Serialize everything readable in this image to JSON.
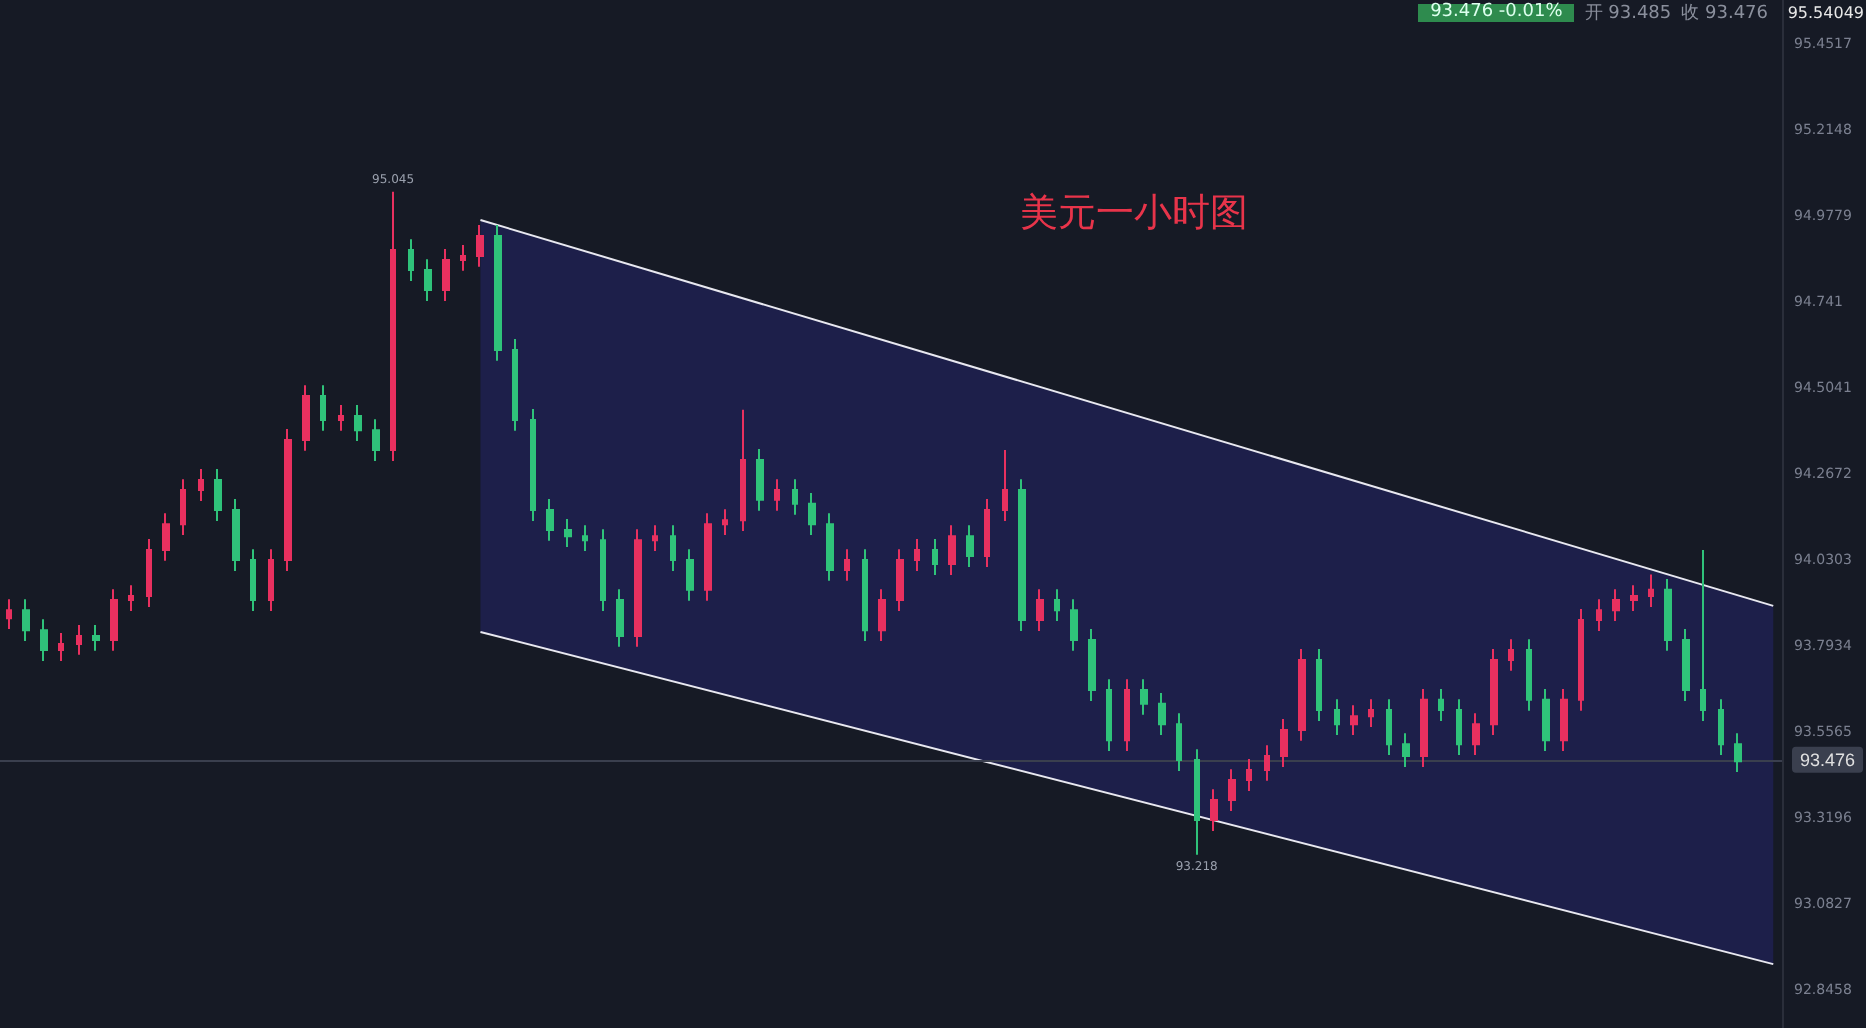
{
  "chart_data": {
    "type": "candlestick",
    "title": "美元一小时图",
    "categories": [
      null,
      null,
      null,
      null,
      null,
      null,
      null,
      null,
      null,
      null,
      null,
      null,
      null,
      null,
      null,
      null,
      null,
      null,
      null,
      null,
      null,
      null,
      null,
      null,
      null,
      null,
      null,
      null,
      null,
      null,
      null,
      null,
      null,
      null,
      null,
      null,
      null,
      null,
      null,
      null,
      null,
      null,
      null,
      null,
      null,
      null,
      null,
      null,
      null,
      null,
      null,
      null,
      null,
      null,
      null,
      null,
      null,
      null,
      null,
      null,
      null,
      null,
      null,
      null,
      null,
      null,
      null,
      null,
      null,
      null,
      null,
      null,
      null,
      null,
      null,
      null,
      null,
      null,
      null,
      null,
      null,
      null,
      null,
      null,
      null,
      null,
      null,
      null,
      null,
      null,
      null,
      null,
      null,
      null,
      null,
      null,
      null,
      null,
      null,
      null,
      null,
      null
    ],
    "ohlc": [
      [
        93.87,
        93.922,
        93.84,
        93.892
      ],
      [
        93.892,
        93.922,
        93.807,
        93.837
      ],
      [
        93.837,
        93.867,
        93.752,
        93.782
      ],
      [
        93.782,
        93.829,
        93.752,
        93.799
      ],
      [
        93.799,
        93.851,
        93.769,
        93.821
      ],
      [
        93.821,
        93.851,
        93.78,
        93.81
      ],
      [
        93.81,
        93.95,
        93.78,
        93.92
      ],
      [
        93.92,
        93.961,
        93.89,
        93.931
      ],
      [
        93.931,
        94.088,
        93.901,
        94.058
      ],
      [
        94.058,
        94.159,
        94.028,
        94.129
      ],
      [
        94.129,
        94.253,
        94.099,
        94.223
      ],
      [
        94.223,
        94.281,
        94.193,
        94.251
      ],
      [
        94.251,
        94.281,
        94.138,
        94.168
      ],
      [
        94.168,
        94.198,
        94.0,
        94.03
      ],
      [
        94.03,
        94.06,
        93.89,
        93.92
      ],
      [
        93.92,
        94.06,
        93.89,
        94.03
      ],
      [
        94.03,
        94.391,
        94.0,
        94.361
      ],
      [
        94.361,
        94.512,
        94.331,
        94.482
      ],
      [
        94.482,
        94.512,
        94.386,
        94.416
      ],
      [
        94.416,
        94.457,
        94.386,
        94.427
      ],
      [
        94.427,
        94.457,
        94.358,
        94.388
      ],
      [
        94.388,
        94.418,
        94.303,
        94.333
      ],
      [
        94.333,
        95.045,
        94.303,
        94.884
      ],
      [
        94.884,
        94.914,
        94.799,
        94.829
      ],
      [
        94.829,
        94.859,
        94.744,
        94.774
      ],
      [
        94.774,
        94.887,
        94.744,
        94.857
      ],
      [
        94.857,
        94.898,
        94.827,
        94.868
      ],
      [
        94.868,
        94.953,
        94.838,
        94.923
      ],
      [
        94.923,
        94.953,
        94.579,
        94.609
      ],
      [
        94.609,
        94.639,
        94.386,
        94.416
      ],
      [
        94.416,
        94.446,
        94.138,
        94.168
      ],
      [
        94.168,
        94.198,
        94.083,
        94.113
      ],
      [
        94.113,
        94.143,
        94.066,
        94.096
      ],
      [
        94.096,
        94.126,
        94.055,
        94.085
      ],
      [
        94.085,
        94.115,
        93.89,
        93.92
      ],
      [
        93.92,
        93.95,
        93.791,
        93.821
      ],
      [
        93.821,
        94.115,
        93.791,
        94.085
      ],
      [
        94.085,
        94.126,
        94.055,
        94.096
      ],
      [
        94.096,
        94.126,
        94.0,
        94.03
      ],
      [
        94.03,
        94.06,
        93.918,
        93.948
      ],
      [
        93.948,
        94.159,
        93.918,
        94.129
      ],
      [
        94.129,
        94.17,
        94.099,
        94.14
      ],
      [
        94.14,
        94.444,
        94.11,
        94.306
      ],
      [
        94.306,
        94.336,
        94.166,
        94.196
      ],
      [
        94.196,
        94.253,
        94.166,
        94.223
      ],
      [
        94.223,
        94.253,
        94.155,
        94.185
      ],
      [
        94.185,
        94.215,
        94.099,
        94.129
      ],
      [
        94.129,
        94.159,
        93.973,
        94.003
      ],
      [
        94.003,
        94.06,
        93.973,
        94.03
      ],
      [
        94.03,
        94.06,
        93.807,
        93.837
      ],
      [
        93.837,
        93.95,
        93.807,
        93.92
      ],
      [
        93.92,
        94.06,
        93.89,
        94.03
      ],
      [
        94.03,
        94.088,
        94.0,
        94.058
      ],
      [
        94.058,
        94.088,
        93.989,
        94.019
      ],
      [
        94.019,
        94.126,
        93.989,
        94.096
      ],
      [
        94.096,
        94.126,
        94.011,
        94.041
      ],
      [
        94.041,
        94.198,
        94.011,
        94.168
      ],
      [
        94.168,
        94.333,
        94.138,
        94.223
      ],
      [
        94.223,
        94.253,
        93.835,
        93.865
      ],
      [
        93.865,
        93.95,
        93.835,
        93.92
      ],
      [
        93.92,
        93.95,
        93.862,
        93.892
      ],
      [
        93.892,
        93.922,
        93.78,
        93.81
      ],
      [
        93.81,
        93.84,
        93.642,
        93.672
      ],
      [
        93.672,
        93.702,
        93.504,
        93.534
      ],
      [
        93.534,
        93.702,
        93.504,
        93.672
      ],
      [
        93.672,
        93.702,
        93.604,
        93.634
      ],
      [
        93.634,
        93.664,
        93.548,
        93.578
      ],
      [
        93.578,
        93.608,
        93.449,
        93.479
      ],
      [
        93.479,
        93.509,
        93.218,
        93.314
      ],
      [
        93.314,
        93.399,
        93.284,
        93.369
      ],
      [
        93.369,
        93.454,
        93.339,
        93.424
      ],
      [
        93.424,
        93.482,
        93.394,
        93.452
      ],
      [
        93.452,
        93.52,
        93.422,
        93.49
      ],
      [
        93.49,
        93.592,
        93.46,
        93.562
      ],
      [
        93.562,
        93.785,
        93.532,
        93.755
      ],
      [
        93.755,
        93.785,
        93.587,
        93.617
      ],
      [
        93.617,
        93.647,
        93.548,
        93.578
      ],
      [
        93.578,
        93.63,
        93.548,
        93.6
      ],
      [
        93.6,
        93.647,
        93.57,
        93.617
      ],
      [
        93.617,
        93.647,
        93.493,
        93.523
      ],
      [
        93.523,
        93.553,
        93.46,
        93.49
      ],
      [
        93.49,
        93.675,
        93.46,
        93.645
      ],
      [
        93.645,
        93.675,
        93.587,
        93.617
      ],
      [
        93.617,
        93.647,
        93.493,
        93.523
      ],
      [
        93.523,
        93.608,
        93.493,
        93.578
      ],
      [
        93.578,
        93.785,
        93.548,
        93.755
      ],
      [
        93.755,
        93.812,
        93.725,
        93.782
      ],
      [
        93.782,
        93.812,
        93.615,
        93.645
      ],
      [
        93.645,
        93.675,
        93.504,
        93.534
      ],
      [
        93.534,
        93.675,
        93.504,
        93.645
      ],
      [
        93.645,
        93.895,
        93.615,
        93.865
      ],
      [
        93.865,
        93.922,
        93.835,
        93.892
      ],
      [
        93.892,
        93.95,
        93.862,
        93.92
      ],
      [
        93.92,
        93.961,
        93.89,
        93.931
      ],
      [
        93.931,
        93.99,
        93.901,
        93.948
      ],
      [
        93.948,
        93.978,
        93.78,
        93.81
      ],
      [
        93.81,
        93.84,
        93.642,
        93.672
      ],
      [
        93.672,
        94.058,
        93.587,
        93.617
      ],
      [
        93.617,
        93.647,
        93.493,
        93.523
      ],
      [
        93.523,
        93.553,
        93.446,
        93.476
      ],
      null,
      null
    ],
    "series": [
      {
        "type": "line",
        "color": "#e8e8f0",
        "values": [
          null,
          null,
          null,
          null,
          null,
          null,
          null,
          null,
          null,
          null,
          null,
          null,
          null,
          null,
          null,
          null,
          null,
          null,
          null,
          null,
          null,
          null,
          null,
          null,
          null,
          null,
          null,
          94.967,
          null,
          null,
          null,
          null,
          null,
          null,
          null,
          null,
          null,
          null,
          null,
          null,
          null,
          null,
          null,
          null,
          null,
          null,
          null,
          null,
          null,
          null,
          null,
          null,
          null,
          null,
          null,
          null,
          null,
          null,
          null,
          null,
          null,
          null,
          null,
          null,
          null,
          null,
          null,
          null,
          null,
          null,
          null,
          null,
          null,
          null,
          null,
          null,
          null,
          null,
          null,
          null,
          null,
          null,
          null,
          null,
          null,
          null,
          null,
          null,
          null,
          null,
          null,
          null,
          null,
          null,
          null,
          null,
          null,
          null,
          null,
          null,
          null,
          93.904
        ]
      },
      {
        "type": "line",
        "color": "#e8e8f0",
        "values": [
          null,
          null,
          null,
          null,
          null,
          null,
          null,
          null,
          null,
          null,
          null,
          null,
          null,
          null,
          null,
          null,
          null,
          null,
          null,
          null,
          null,
          null,
          null,
          null,
          null,
          null,
          null,
          93.832,
          null,
          null,
          null,
          null,
          null,
          null,
          null,
          null,
          null,
          null,
          null,
          null,
          null,
          null,
          null,
          null,
          null,
          null,
          null,
          null,
          null,
          null,
          null,
          null,
          null,
          null,
          null,
          null,
          null,
          null,
          null,
          null,
          null,
          null,
          null,
          null,
          null,
          null,
          null,
          null,
          null,
          null,
          null,
          null,
          null,
          null,
          null,
          null,
          null,
          null,
          null,
          null,
          null,
          null,
          null,
          null,
          null,
          null,
          null,
          null,
          null,
          null,
          null,
          null,
          null,
          null,
          null,
          null,
          null,
          null,
          null,
          null,
          null,
          92.917
        ]
      }
    ],
    "ylim": [
      92.741,
      95.573
    ],
    "yticks": [
      95.4517,
      95.2148,
      94.9779,
      94.741,
      94.5041,
      94.2672,
      94.0303,
      93.7934,
      93.5565,
      93.3196,
      93.0827,
      92.8458
    ],
    "grid": false,
    "ref_lines": [
      {
        "axis": "y",
        "value": 93.476,
        "label": "93.476",
        "color": "#3a3f4e",
        "line_style": "solid"
      }
    ],
    "annotations": [
      "93.476",
      "-0.01%",
      "开 93.485",
      "收 93.476",
      "95.54049",
      {
        "text": "95.045",
        "y": 95.045
      },
      {
        "text": "93.218",
        "y": 93.218
      }
    ]
  }
}
